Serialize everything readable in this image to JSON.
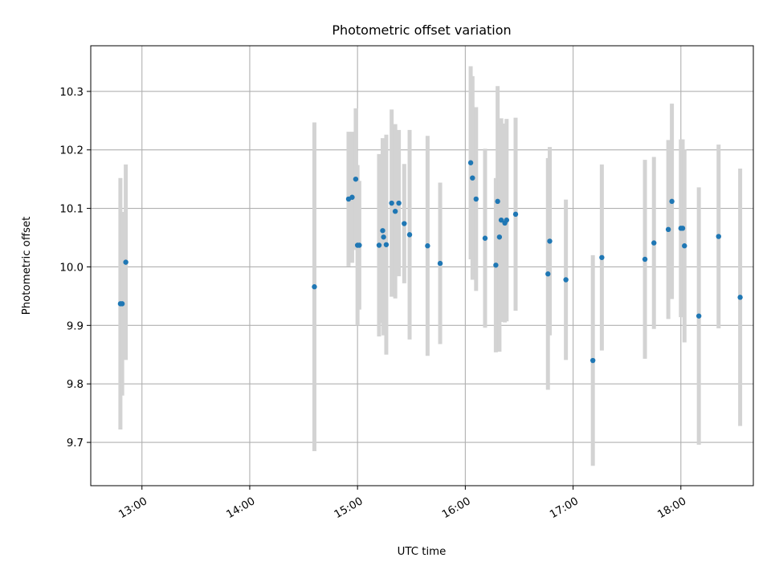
{
  "chart_data": {
    "type": "scatter",
    "title": "Photometric offset variation",
    "xlabel": "UTC time",
    "ylabel": "Photometric offset",
    "x_ticks": [
      "13:00",
      "14:00",
      "15:00",
      "16:00",
      "17:00",
      "18:00"
    ],
    "y_ticks": [
      "9.7",
      "9.8",
      "9.9",
      "10.0",
      "10.1",
      "10.2",
      "10.3"
    ],
    "xlim": [
      "12:31:30",
      "18:40:20"
    ],
    "ylim": [
      9.626,
      10.378
    ],
    "grid": true,
    "colors": {
      "points": "#1f77b4",
      "errorbars": "#d3d3d3",
      "grid": "#b0b0b0"
    },
    "series": [
      {
        "x": [
          "12:48:00",
          "12:49:00",
          "12:51:00",
          "14:36:00",
          "14:55:00",
          "14:57:00",
          "14:59:00",
          "15:00:00",
          "15:01:00",
          "15:12:00",
          "15:14:00",
          "15:14:30",
          "15:16:00",
          "15:19:00",
          "15:21:00",
          "15:23:00",
          "15:26:00",
          "15:29:00",
          "15:39:00",
          "15:46:00",
          "16:03:00",
          "16:04:00",
          "16:06:00",
          "16:11:00",
          "16:17:00",
          "16:18:00",
          "16:19:00",
          "16:20:00",
          "16:22:00",
          "16:23:00",
          "16:28:00",
          "16:46:00",
          "16:47:00",
          "16:56:00",
          "17:11:00",
          "17:16:00",
          "17:40:00",
          "17:45:00",
          "17:53:00",
          "17:55:00",
          "18:00:00",
          "18:01:00",
          "18:02:00",
          "18:10:00",
          "18:21:00",
          "18:33:00"
        ],
        "y": [
          9.937,
          9.937,
          10.008,
          9.966,
          10.116,
          10.119,
          10.15,
          10.037,
          10.037,
          10.037,
          10.062,
          10.051,
          10.038,
          10.109,
          10.095,
          10.109,
          10.074,
          10.055,
          10.036,
          10.006,
          10.178,
          10.152,
          10.116,
          10.049,
          10.003,
          10.112,
          10.051,
          10.08,
          10.075,
          10.08,
          10.09,
          9.988,
          10.044,
          9.978,
          9.84,
          10.016,
          10.013,
          10.041,
          10.064,
          10.112,
          10.066,
          10.066,
          10.036,
          9.916,
          10.052,
          9.948
        ],
        "y_error": [
          0.215,
          0.157,
          0.167,
          0.281,
          0.115,
          0.112,
          0.121,
          0.137,
          0.11,
          0.156,
          0.158,
          0.168,
          0.188,
          0.16,
          0.149,
          0.125,
          0.102,
          0.179,
          0.188,
          0.138,
          0.165,
          0.174,
          0.157,
          0.153,
          0.149,
          0.197,
          0.196,
          0.174,
          0.17,
          0.173,
          0.165,
          0.198,
          0.161,
          0.137,
          0.18,
          0.159,
          0.17,
          0.147,
          0.153,
          0.167,
          0.152,
          0.152,
          0.165,
          0.22,
          0.157,
          0.22
        ]
      }
    ]
  }
}
